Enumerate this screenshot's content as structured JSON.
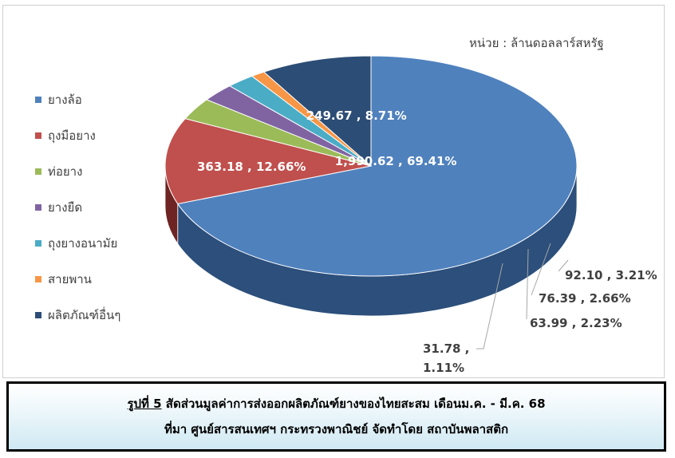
{
  "chart_data": {
    "type": "pie",
    "unit_label": "หน่วย : ล้านดอลลาร์สหรัฐ",
    "legend_position": "left",
    "slices": [
      {
        "name": "ยางล้อ",
        "value": 1990.62,
        "percent": 69.41,
        "label": "1,990.62 , 69.41%",
        "color": "#4F81BD",
        "side_color": "#2C4F7B"
      },
      {
        "name": "ถุงมือยาง",
        "value": 363.18,
        "percent": 12.66,
        "label": "363.18 , 12.66%",
        "color": "#C0504D",
        "side_color": "#6E2422"
      },
      {
        "name": "ท่อยาง",
        "value": 92.1,
        "percent": 3.21,
        "label": "92.10 , 3.21%",
        "color": "#9BBB59",
        "side_color": "#4D5E25"
      },
      {
        "name": "ยางยืด",
        "value": 76.39,
        "percent": 2.66,
        "label": "76.39 , 2.66%",
        "color": "#8064A2",
        "side_color": "#3F2C55"
      },
      {
        "name": "ถุงยางอนามัย",
        "value": 63.99,
        "percent": 2.23,
        "label": "63.99 , 2.23%",
        "color": "#4BACC6",
        "side_color": "#1F5460"
      },
      {
        "name": "สายพาน",
        "value": 31.78,
        "percent": 1.11,
        "label_line1": "31.78 ,",
        "label_line2": "1.11%",
        "color": "#F79646",
        "side_color": "#7A4516"
      },
      {
        "name": "ผลิตภัณฑ์อื่นๆ",
        "value": 249.67,
        "percent": 8.71,
        "label": "249.67 , 8.71%",
        "color": "#2C4D75",
        "side_color": "#14253A"
      }
    ]
  },
  "caption": {
    "figure_ref": "รูปที่ 5",
    "line1_rest": " สัดส่วนมูลค่าการส่งออกผลิตภัณฑ์ยางของไทยสะสม เดือนม.ค. - มี.ค. 68",
    "line2": "ที่มา ศูนย์สารสนเทศฯ กระทรวงพาณิชย์ จัดทำโดย สถาบันพลาสติก"
  }
}
